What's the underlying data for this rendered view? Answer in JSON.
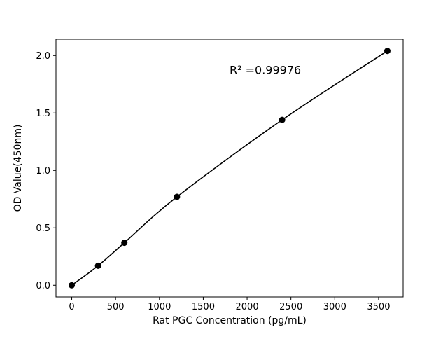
{
  "chart_data": {
    "type": "scatter",
    "title": "",
    "xlabel": "Rat PGC Concentration (pg/mL)",
    "ylabel": "OD Value(450nm)",
    "series": [
      {
        "name": "standard-curve",
        "x": [
          0,
          300,
          600,
          1200,
          2400,
          3600
        ],
        "y": [
          0.0,
          0.17,
          0.37,
          0.77,
          1.44,
          2.04
        ]
      }
    ],
    "xlim": [
      -180,
      3780
    ],
    "ylim": [
      -0.102,
      2.142
    ],
    "xticks": [
      0,
      500,
      1000,
      1500,
      2000,
      2500,
      3000,
      3500
    ],
    "xtick_labels": [
      "0",
      "500",
      "1000",
      "1500",
      "2000",
      "2500",
      "3000",
      "3500"
    ],
    "yticks": [
      0.0,
      0.5,
      1.0,
      1.5,
      2.0
    ],
    "ytick_labels": [
      "0.0",
      "0.5",
      "1.0",
      "1.5",
      "2.0"
    ],
    "annotation": {
      "text": "R² =0.99976",
      "x": 1800,
      "y": 1.84
    },
    "grid": false,
    "legend": null,
    "marker_color": "#000000",
    "line_color": "#000000",
    "background_color": "#ffffff"
  }
}
